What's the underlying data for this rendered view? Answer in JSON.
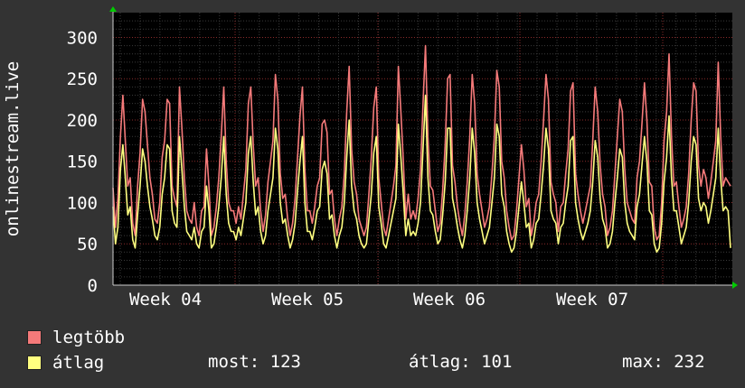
{
  "chart_data": {
    "type": "line",
    "ylabel": "onlinestream.live",
    "yticks": [
      0,
      50,
      100,
      150,
      200,
      250,
      300
    ],
    "ylim": [
      0,
      330
    ],
    "xticks": [
      "Week 04",
      "Week 05",
      "Week 06",
      "Week 07"
    ],
    "grid": true,
    "series": [
      {
        "name": "legtöbb",
        "color": "#f57a7a",
        "values": [
          118,
          70,
          105,
          180,
          230,
          175,
          120,
          130,
          75,
          60,
          120,
          160,
          225,
          210,
          170,
          130,
          110,
          80,
          75,
          100,
          155,
          175,
          225,
          220,
          120,
          105,
          95,
          240,
          190,
          130,
          90,
          80,
          75,
          100,
          70,
          60,
          90,
          95,
          165,
          120,
          60,
          70,
          95,
          130,
          180,
          240,
          150,
          100,
          90,
          90,
          75,
          95,
          80,
          110,
          140,
          220,
          240,
          170,
          120,
          130,
          90,
          65,
          85,
          125,
          150,
          175,
          255,
          225,
          135,
          105,
          110,
          80,
          60,
          75,
          105,
          155,
          205,
          240,
          140,
          90,
          90,
          75,
          95,
          120,
          130,
          195,
          200,
          185,
          110,
          115,
          80,
          60,
          80,
          95,
          135,
          210,
          265,
          165,
          125,
          110,
          80,
          70,
          60,
          70,
          110,
          155,
          215,
          240,
          130,
          100,
          70,
          60,
          80,
          100,
          120,
          145,
          265,
          210,
          150,
          80,
          110,
          80,
          90,
          80,
          105,
          140,
          220,
          290,
          180,
          120,
          115,
          90,
          65,
          75,
          115,
          170,
          250,
          255,
          145,
          125,
          95,
          75,
          60,
          85,
          125,
          180,
          255,
          220,
          135,
          110,
          90,
          70,
          80,
          95,
          135,
          180,
          260,
          240,
          150,
          130,
          90,
          70,
          55,
          60,
          90,
          130,
          170,
          140,
          95,
          105,
          60,
          75,
          100,
          110,
          150,
          200,
          255,
          225,
          125,
          110,
          100,
          65,
          95,
          100,
          135,
          165,
          235,
          245,
          135,
          110,
          90,
          75,
          90,
          105,
          120,
          175,
          240,
          210,
          145,
          110,
          95,
          60,
          70,
          90,
          135,
          180,
          225,
          210,
          140,
          100,
          90,
          80,
          75,
          130,
          150,
          195,
          245,
          200,
          125,
          120,
          70,
          55,
          60,
          100,
          175,
          210,
          280,
          180,
          120,
          125,
          95,
          70,
          80,
          95,
          135,
          200,
          245,
          235,
          145,
          120,
          140,
          130,
          105,
          125,
          150,
          175,
          270,
          180,
          120,
          130,
          125,
          120
        ]
      },
      {
        "name": "átlag",
        "color": "#ffff80",
        "values": [
          95,
          50,
          70,
          140,
          170,
          130,
          85,
          95,
          55,
          45,
          85,
          120,
          165,
          150,
          120,
          95,
          80,
          60,
          55,
          70,
          110,
          130,
          170,
          165,
          90,
          75,
          70,
          180,
          140,
          95,
          65,
          60,
          55,
          70,
          50,
          45,
          65,
          70,
          120,
          90,
          45,
          50,
          70,
          95,
          130,
          180,
          110,
          75,
          65,
          65,
          55,
          70,
          60,
          80,
          100,
          160,
          180,
          125,
          85,
          95,
          65,
          50,
          60,
          90,
          110,
          130,
          190,
          165,
          100,
          75,
          80,
          60,
          45,
          55,
          75,
          115,
          150,
          180,
          100,
          65,
          65,
          55,
          70,
          90,
          95,
          140,
          150,
          135,
          80,
          85,
          60,
          45,
          60,
          70,
          100,
          155,
          200,
          120,
          90,
          80,
          60,
          50,
          45,
          50,
          80,
          110,
          160,
          180,
          95,
          75,
          50,
          45,
          60,
          75,
          90,
          105,
          195,
          155,
          110,
          60,
          80,
          60,
          65,
          60,
          75,
          100,
          165,
          230,
          130,
          90,
          85,
          65,
          50,
          55,
          85,
          125,
          190,
          190,
          105,
          90,
          70,
          55,
          45,
          60,
          90,
          130,
          190,
          160,
          100,
          80,
          65,
          50,
          60,
          70,
          100,
          130,
          195,
          180,
          110,
          95,
          65,
          50,
          40,
          45,
          65,
          95,
          125,
          100,
          70,
          75,
          45,
          55,
          75,
          80,
          110,
          145,
          190,
          165,
          90,
          80,
          75,
          50,
          70,
          75,
          100,
          120,
          175,
          180,
          100,
          80,
          65,
          55,
          65,
          75,
          90,
          125,
          175,
          155,
          105,
          80,
          70,
          45,
          50,
          65,
          100,
          130,
          165,
          155,
          100,
          75,
          65,
          60,
          55,
          95,
          110,
          145,
          180,
          150,
          90,
          85,
          50,
          40,
          45,
          75,
          125,
          155,
          205,
          130,
          90,
          90,
          70,
          50,
          60,
          70,
          100,
          150,
          180,
          170,
          105,
          90,
          100,
          95,
          75,
          90,
          110,
          130,
          190,
          130,
          90,
          95,
          90,
          45
        ]
      }
    ]
  },
  "legend": {
    "max_label": "legtöbb",
    "avg_label": "átlag"
  },
  "stats": {
    "now": "most: 123",
    "avg": "átlag: 101",
    "max": "max: 232"
  }
}
